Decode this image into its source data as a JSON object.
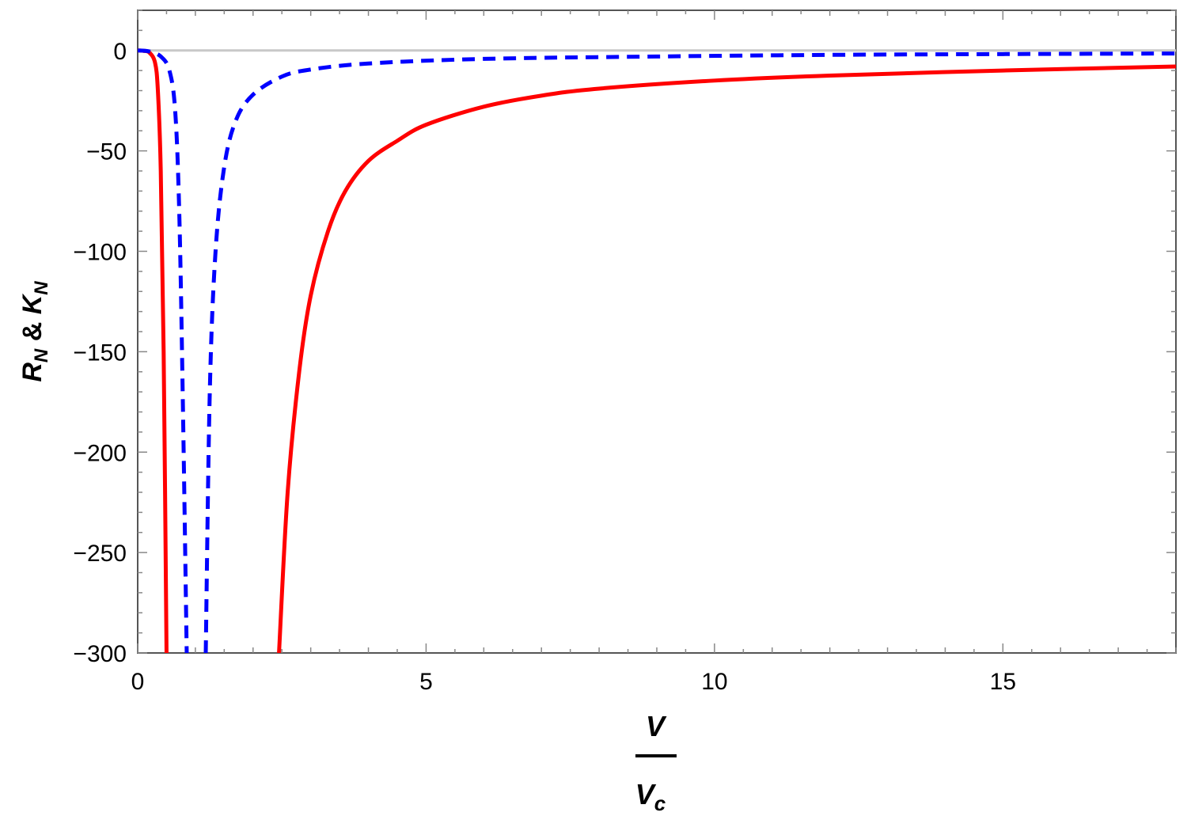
{
  "chart_data": {
    "type": "line",
    "title": "",
    "xlabel_numerator": "V",
    "xlabel_denominator_main": "V",
    "xlabel_denominator_sub": "c",
    "ylabel_R": "R",
    "ylabel_R_sub": "N",
    "ylabel_amp": " & ",
    "ylabel_K": "K",
    "ylabel_K_sub": "N",
    "xlim": [
      0,
      18
    ],
    "ylim": [
      -300,
      20
    ],
    "x_ticks": [
      0,
      5,
      10,
      15
    ],
    "x_tick_labels": [
      "0",
      "5",
      "10",
      "15"
    ],
    "y_ticks": [
      0,
      -50,
      -100,
      -150,
      -200,
      -250,
      -300
    ],
    "y_tick_labels": [
      "0",
      "−50",
      "−100",
      "−150",
      "−200",
      "−250",
      "−300"
    ],
    "grid": false,
    "legend": "none",
    "reference_line": {
      "y": 0,
      "color": "#c8c8c8"
    },
    "series": [
      {
        "color": "#ff0000",
        "style": "solid",
        "points": [
          [
            0,
            0
          ],
          [
            0.1,
            -0.2
          ],
          [
            0.2,
            -1
          ],
          [
            0.3,
            -6
          ],
          [
            0.35,
            -20
          ],
          [
            0.4,
            -60
          ],
          [
            0.45,
            -150
          ],
          [
            0.5,
            -300
          ]
        ],
        "points_right": [
          [
            2.45,
            -300
          ],
          [
            2.6,
            -220
          ],
          [
            2.8,
            -160
          ],
          [
            3.0,
            -122
          ],
          [
            3.3,
            -90
          ],
          [
            3.6,
            -70
          ],
          [
            4.0,
            -55
          ],
          [
            4.5,
            -45
          ],
          [
            5.0,
            -37
          ],
          [
            6.0,
            -28
          ],
          [
            7.0,
            -22.5
          ],
          [
            8.0,
            -19
          ],
          [
            10.0,
            -15
          ],
          [
            12.0,
            -12.5
          ],
          [
            15.0,
            -10
          ],
          [
            18.0,
            -8
          ]
        ]
      },
      {
        "color": "#0000ff",
        "style": "dashed",
        "points": [
          [
            0,
            0
          ],
          [
            0.2,
            -0.5
          ],
          [
            0.4,
            -3
          ],
          [
            0.55,
            -10
          ],
          [
            0.65,
            -30
          ],
          [
            0.72,
            -80
          ],
          [
            0.78,
            -170
          ],
          [
            0.85,
            -300
          ]
        ],
        "points_right": [
          [
            1.18,
            -300
          ],
          [
            1.25,
            -170
          ],
          [
            1.35,
            -100
          ],
          [
            1.5,
            -58
          ],
          [
            1.7,
            -35
          ],
          [
            2.0,
            -22
          ],
          [
            2.5,
            -13
          ],
          [
            3.0,
            -9.5
          ],
          [
            4.0,
            -6.5
          ],
          [
            6.0,
            -4.2
          ],
          [
            9.0,
            -3.0
          ],
          [
            12.0,
            -2.2
          ],
          [
            15.0,
            -1.8
          ],
          [
            18.0,
            -1.5
          ]
        ]
      }
    ]
  }
}
